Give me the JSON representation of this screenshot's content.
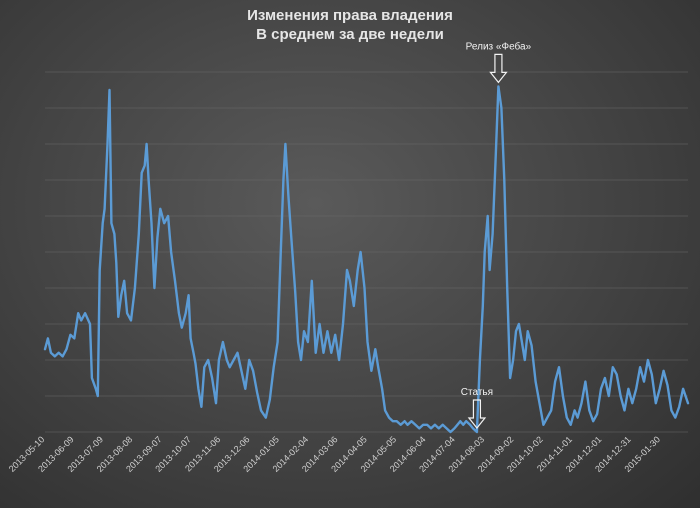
{
  "chart_data": {
    "type": "line",
    "title": "Изменения права владения",
    "subtitle": "В среднем за две недели",
    "xlabel": "",
    "ylabel": "",
    "x_ticks": [
      "2013-05-10",
      "2013-06-09",
      "2013-07-09",
      "2013-08-08",
      "2013-09-07",
      "2013-10-07",
      "2013-11-06",
      "2013-12-06",
      "2014-01-05",
      "2014-02-04",
      "2014-03-06",
      "2014-04-05",
      "2014-05-05",
      "2014-06-04",
      "2014-07-04",
      "2014-08-03",
      "2014-09-02",
      "2014-10-02",
      "2014-11-01",
      "2014-12-01",
      "2014-12-31",
      "2015-01-30"
    ],
    "x_range": [
      "2013-05-10",
      "2015-02-27"
    ],
    "ylim": [
      0,
      100
    ],
    "y_tick_labels_shown": false,
    "grid": "horizontal",
    "legend": "none",
    "line_color": "#5b9bd5",
    "series": [
      {
        "points": [
          [
            "2013-05-10",
            23
          ],
          [
            "2013-05-13",
            26
          ],
          [
            "2013-05-16",
            22
          ],
          [
            "2013-05-20",
            21
          ],
          [
            "2013-05-24",
            22
          ],
          [
            "2013-05-28",
            21
          ],
          [
            "2013-06-01",
            23
          ],
          [
            "2013-06-05",
            27
          ],
          [
            "2013-06-09",
            26
          ],
          [
            "2013-06-13",
            33
          ],
          [
            "2013-06-16",
            31
          ],
          [
            "2013-06-20",
            33
          ],
          [
            "2013-06-25",
            30
          ],
          [
            "2013-06-27",
            15
          ],
          [
            "2013-07-01",
            12
          ],
          [
            "2013-07-03",
            10
          ],
          [
            "2013-07-05",
            45
          ],
          [
            "2013-07-08",
            58
          ],
          [
            "2013-07-10",
            62
          ],
          [
            "2013-07-13",
            80
          ],
          [
            "2013-07-15",
            95
          ],
          [
            "2013-07-17",
            58
          ],
          [
            "2013-07-20",
            55
          ],
          [
            "2013-07-22",
            47
          ],
          [
            "2013-07-24",
            32
          ],
          [
            "2013-07-27",
            38
          ],
          [
            "2013-07-30",
            42
          ],
          [
            "2013-08-02",
            33
          ],
          [
            "2013-08-06",
            31
          ],
          [
            "2013-08-10",
            40
          ],
          [
            "2013-08-14",
            55
          ],
          [
            "2013-08-17",
            72
          ],
          [
            "2013-08-20",
            74
          ],
          [
            "2013-08-22",
            80
          ],
          [
            "2013-08-24",
            70
          ],
          [
            "2013-08-27",
            58
          ],
          [
            "2013-08-30",
            40
          ],
          [
            "2013-09-02",
            54
          ],
          [
            "2013-09-05",
            62
          ],
          [
            "2013-09-09",
            58
          ],
          [
            "2013-09-13",
            60
          ],
          [
            "2013-09-16",
            50
          ],
          [
            "2013-09-20",
            42
          ],
          [
            "2013-09-24",
            33
          ],
          [
            "2013-09-27",
            29
          ],
          [
            "2013-10-01",
            33
          ],
          [
            "2013-10-04",
            38
          ],
          [
            "2013-10-06",
            26
          ],
          [
            "2013-10-09",
            22
          ],
          [
            "2013-10-11",
            19
          ],
          [
            "2013-10-14",
            12
          ],
          [
            "2013-10-17",
            7
          ],
          [
            "2013-10-20",
            18
          ],
          [
            "2013-10-24",
            20
          ],
          [
            "2013-10-28",
            15
          ],
          [
            "2013-11-01",
            8
          ],
          [
            "2013-11-04",
            20
          ],
          [
            "2013-11-08",
            25
          ],
          [
            "2013-11-12",
            20
          ],
          [
            "2013-11-15",
            18
          ],
          [
            "2013-11-19",
            20
          ],
          [
            "2013-11-23",
            22
          ],
          [
            "2013-11-27",
            17
          ],
          [
            "2013-12-01",
            12
          ],
          [
            "2013-12-05",
            20
          ],
          [
            "2013-12-09",
            17
          ],
          [
            "2013-12-13",
            11
          ],
          [
            "2013-12-17",
            6
          ],
          [
            "2013-12-22",
            4
          ],
          [
            "2013-12-26",
            9
          ],
          [
            "2013-12-30",
            18
          ],
          [
            "2014-01-03",
            25
          ],
          [
            "2014-01-06",
            48
          ],
          [
            "2014-01-09",
            70
          ],
          [
            "2014-01-11",
            80
          ],
          [
            "2014-01-14",
            66
          ],
          [
            "2014-01-17",
            54
          ],
          [
            "2014-01-21",
            39
          ],
          [
            "2014-01-24",
            25
          ],
          [
            "2014-01-27",
            20
          ],
          [
            "2014-01-30",
            28
          ],
          [
            "2014-02-03",
            25
          ],
          [
            "2014-02-07",
            42
          ],
          [
            "2014-02-11",
            22
          ],
          [
            "2014-02-15",
            30
          ],
          [
            "2014-02-19",
            22
          ],
          [
            "2014-02-23",
            28
          ],
          [
            "2014-02-27",
            22
          ],
          [
            "2014-03-03",
            27
          ],
          [
            "2014-03-07",
            20
          ],
          [
            "2014-03-11",
            30
          ],
          [
            "2014-03-15",
            45
          ],
          [
            "2014-03-18",
            42
          ],
          [
            "2014-03-22",
            35
          ],
          [
            "2014-03-26",
            45
          ],
          [
            "2014-03-29",
            50
          ],
          [
            "2014-04-02",
            40
          ],
          [
            "2014-04-05",
            25
          ],
          [
            "2014-04-09",
            17
          ],
          [
            "2014-04-13",
            23
          ],
          [
            "2014-04-16",
            18
          ],
          [
            "2014-04-20",
            12
          ],
          [
            "2014-04-23",
            6
          ],
          [
            "2014-04-27",
            4
          ],
          [
            "2014-05-01",
            3
          ],
          [
            "2014-05-05",
            3
          ],
          [
            "2014-05-09",
            2
          ],
          [
            "2014-05-13",
            3
          ],
          [
            "2014-05-16",
            2
          ],
          [
            "2014-05-20",
            3
          ],
          [
            "2014-05-24",
            2
          ],
          [
            "2014-05-28",
            1
          ],
          [
            "2014-06-01",
            2
          ],
          [
            "2014-06-05",
            2
          ],
          [
            "2014-06-09",
            1
          ],
          [
            "2014-06-13",
            2
          ],
          [
            "2014-06-17",
            1
          ],
          [
            "2014-06-21",
            2
          ],
          [
            "2014-06-25",
            1
          ],
          [
            "2014-06-29",
            0
          ],
          [
            "2014-07-03",
            1
          ],
          [
            "2014-07-06",
            2
          ],
          [
            "2014-07-09",
            3
          ],
          [
            "2014-07-12",
            2
          ],
          [
            "2014-07-15",
            3
          ],
          [
            "2014-07-19",
            2
          ],
          [
            "2014-07-22",
            1
          ],
          [
            "2014-07-26",
            0
          ],
          [
            "2014-07-29",
            20
          ],
          [
            "2014-08-01",
            35
          ],
          [
            "2014-08-03",
            50
          ],
          [
            "2014-08-06",
            60
          ],
          [
            "2014-08-08",
            45
          ],
          [
            "2014-08-11",
            55
          ],
          [
            "2014-08-14",
            75
          ],
          [
            "2014-08-17",
            96
          ],
          [
            "2014-08-20",
            90
          ],
          [
            "2014-08-23",
            70
          ],
          [
            "2014-08-26",
            40
          ],
          [
            "2014-08-29",
            15
          ],
          [
            "2014-09-01",
            20
          ],
          [
            "2014-09-04",
            28
          ],
          [
            "2014-09-07",
            30
          ],
          [
            "2014-09-10",
            25
          ],
          [
            "2014-09-13",
            20
          ],
          [
            "2014-09-16",
            28
          ],
          [
            "2014-09-20",
            24
          ],
          [
            "2014-09-24",
            14
          ],
          [
            "2014-09-28",
            8
          ],
          [
            "2014-10-02",
            2
          ],
          [
            "2014-10-06",
            4
          ],
          [
            "2014-10-10",
            6
          ],
          [
            "2014-10-14",
            14
          ],
          [
            "2014-10-18",
            18
          ],
          [
            "2014-10-22",
            10
          ],
          [
            "2014-10-26",
            4
          ],
          [
            "2014-10-30",
            2
          ],
          [
            "2014-11-03",
            6
          ],
          [
            "2014-11-06",
            4
          ],
          [
            "2014-11-10",
            8
          ],
          [
            "2014-11-14",
            14
          ],
          [
            "2014-11-18",
            6
          ],
          [
            "2014-11-22",
            3
          ],
          [
            "2014-11-26",
            5
          ],
          [
            "2014-11-30",
            12
          ],
          [
            "2014-12-04",
            15
          ],
          [
            "2014-12-08",
            10
          ],
          [
            "2014-12-12",
            18
          ],
          [
            "2014-12-16",
            16
          ],
          [
            "2014-12-20",
            10
          ],
          [
            "2014-12-24",
            6
          ],
          [
            "2014-12-28",
            12
          ],
          [
            "2015-01-01",
            8
          ],
          [
            "2015-01-05",
            12
          ],
          [
            "2015-01-09",
            18
          ],
          [
            "2015-01-13",
            14
          ],
          [
            "2015-01-17",
            20
          ],
          [
            "2015-01-21",
            16
          ],
          [
            "2015-01-25",
            8
          ],
          [
            "2015-01-29",
            12
          ],
          [
            "2015-02-02",
            17
          ],
          [
            "2015-02-06",
            13
          ],
          [
            "2015-02-10",
            6
          ],
          [
            "2015-02-14",
            4
          ],
          [
            "2015-02-18",
            7
          ],
          [
            "2015-02-22",
            12
          ],
          [
            "2015-02-27",
            8
          ]
        ]
      }
    ],
    "annotations": [
      {
        "text": "Статья",
        "date": "2014-07-26",
        "arrow": "down"
      },
      {
        "text": "Релиз «Феба»",
        "date": "2014-08-17",
        "arrow": "down"
      }
    ]
  }
}
